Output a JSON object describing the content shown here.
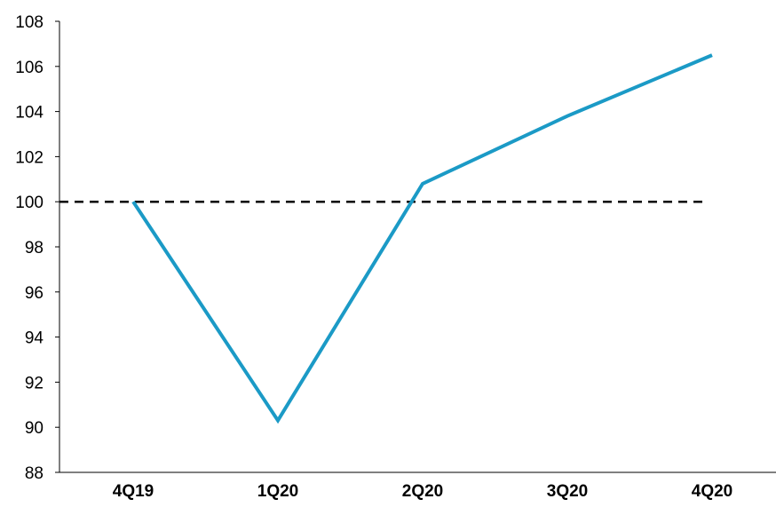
{
  "chart_data": {
    "type": "line",
    "title": "",
    "xlabel": "",
    "ylabel": "",
    "categories": [
      "4Q19",
      "1Q20",
      "2Q20",
      "3Q20",
      "4Q20"
    ],
    "series": [
      {
        "values": [
          100.0,
          90.3,
          100.8,
          103.8,
          106.5
        ],
        "color": "#1b9ac6"
      }
    ],
    "reference_line": {
      "value": 100,
      "style": "dashed",
      "color": "#000000"
    },
    "ylim": [
      88,
      108
    ],
    "y_ticks": [
      88,
      90,
      92,
      94,
      96,
      98,
      100,
      102,
      104,
      106,
      108
    ],
    "grid": false,
    "legend": "none"
  }
}
